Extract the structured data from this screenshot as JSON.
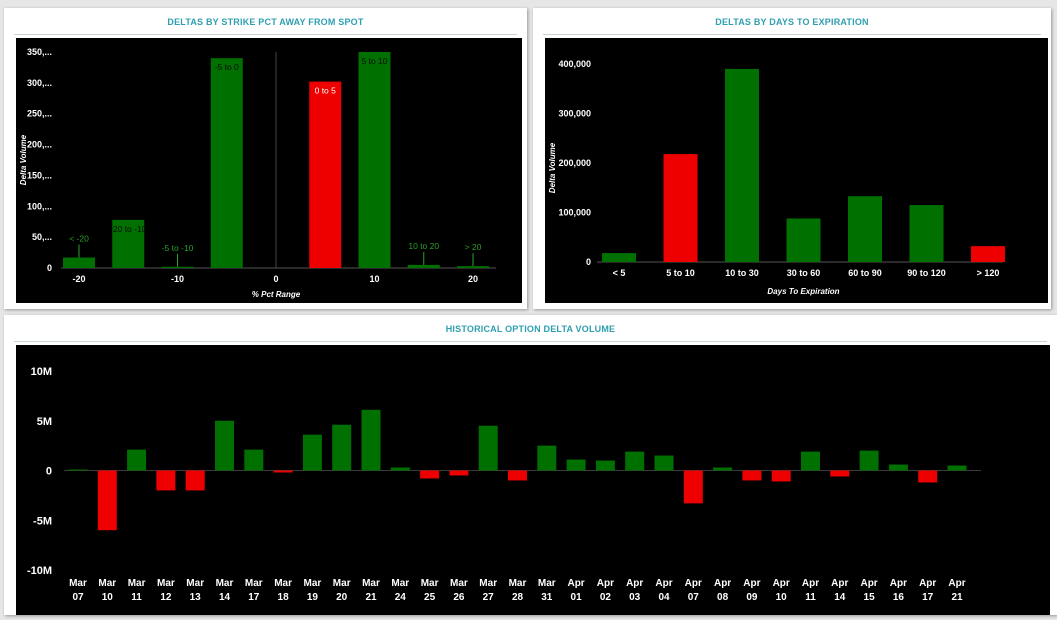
{
  "panels": {
    "strike": {
      "title": "DELTAS BY STRIKE PCT AWAY FROM SPOT"
    },
    "dte": {
      "title": "DELTAS BY DAYS TO EXPIRATION"
    },
    "history": {
      "title": "HISTORICAL OPTION DELTA VOLUME"
    }
  },
  "colors": {
    "positive": "#007000",
    "negative": "#ee0000",
    "background": "#000000",
    "title": "#2f9fb0"
  },
  "chart_data": [
    {
      "id": "strike",
      "type": "bar",
      "xlabel": "% Pct Range",
      "ylabel": "Delta Volume",
      "ylim": [
        0,
        350
      ],
      "yticks": [
        "0",
        "50,...",
        "100,...",
        "150,...",
        "200,...",
        "250,...",
        "300,...",
        "350,..."
      ],
      "xticks": [
        "-20",
        "-10",
        "0",
        "10",
        "20"
      ],
      "xlim": [
        -20,
        20
      ],
      "zero_line": true,
      "bars": [
        {
          "label": "< -20",
          "x": -20,
          "value": 17,
          "sign": "pos"
        },
        {
          "label": "-20 to -10",
          "x": -15,
          "value": 78,
          "sign": "pos"
        },
        {
          "label": "-5 to -10",
          "x": -10,
          "value": 2,
          "sign": "pos"
        },
        {
          "label": "-5 to 0",
          "x": -5,
          "value": 340,
          "sign": "pos"
        },
        {
          "label": "0 to 5",
          "x": 5,
          "value": 302,
          "sign": "neg"
        },
        {
          "label": "5 to 10",
          "x": 10,
          "value": 350,
          "sign": "pos"
        },
        {
          "label": "10 to 20",
          "x": 15,
          "value": 5,
          "sign": "pos"
        },
        {
          "label": "> 20",
          "x": 20,
          "value": 3,
          "sign": "pos"
        }
      ]
    },
    {
      "id": "dte",
      "type": "bar",
      "xlabel": "Days To Expiration",
      "ylabel": "Delta Volume",
      "ylim": [
        0,
        400000
      ],
      "yticks": [
        "0",
        "100,000",
        "200,000",
        "300,000",
        "400,000"
      ],
      "categories": [
        "< 5",
        "5 to 10",
        "10 to 30",
        "30 to 60",
        "60 to 90",
        "90 to 120",
        "> 120"
      ],
      "values": [
        18000,
        218000,
        390000,
        88000,
        133000,
        115000,
        32000
      ],
      "signs": [
        "pos",
        "neg",
        "pos",
        "pos",
        "pos",
        "pos",
        "neg"
      ]
    },
    {
      "id": "history",
      "type": "bar",
      "ylim": [
        -10,
        10
      ],
      "yticks": [
        "-10M",
        "-5M",
        "0",
        "5M",
        "10M"
      ],
      "categories": [
        {
          "m": "Mar",
          "d": "07"
        },
        {
          "m": "Mar",
          "d": "10"
        },
        {
          "m": "Mar",
          "d": "11"
        },
        {
          "m": "Mar",
          "d": "12"
        },
        {
          "m": "Mar",
          "d": "13"
        },
        {
          "m": "Mar",
          "d": "14"
        },
        {
          "m": "Mar",
          "d": "17"
        },
        {
          "m": "Mar",
          "d": "18"
        },
        {
          "m": "Mar",
          "d": "19"
        },
        {
          "m": "Mar",
          "d": "20"
        },
        {
          "m": "Mar",
          "d": "21"
        },
        {
          "m": "Mar",
          "d": "24"
        },
        {
          "m": "Mar",
          "d": "25"
        },
        {
          "m": "Mar",
          "d": "26"
        },
        {
          "m": "Mar",
          "d": "27"
        },
        {
          "m": "Mar",
          "d": "28"
        },
        {
          "m": "Mar",
          "d": "31"
        },
        {
          "m": "Apr",
          "d": "01"
        },
        {
          "m": "Apr",
          "d": "02"
        },
        {
          "m": "Apr",
          "d": "03"
        },
        {
          "m": "Apr",
          "d": "04"
        },
        {
          "m": "Apr",
          "d": "07"
        },
        {
          "m": "Apr",
          "d": "08"
        },
        {
          "m": "Apr",
          "d": "09"
        },
        {
          "m": "Apr",
          "d": "10"
        },
        {
          "m": "Apr",
          "d": "11"
        },
        {
          "m": "Apr",
          "d": "14"
        },
        {
          "m": "Apr",
          "d": "15"
        },
        {
          "m": "Apr",
          "d": "16"
        },
        {
          "m": "Apr",
          "d": "17"
        },
        {
          "m": "Apr",
          "d": "21"
        }
      ],
      "values": [
        0.1,
        -6.0,
        2.1,
        -2.0,
        -2.0,
        5.0,
        2.1,
        -0.2,
        3.6,
        4.6,
        6.1,
        0.3,
        -0.8,
        -0.5,
        4.5,
        -1.0,
        2.5,
        1.1,
        1.0,
        1.9,
        1.5,
        -3.3,
        0.3,
        -1.0,
        -1.1,
        1.9,
        -0.6,
        2.0,
        0.6,
        -1.2,
        0.5
      ]
    }
  ]
}
